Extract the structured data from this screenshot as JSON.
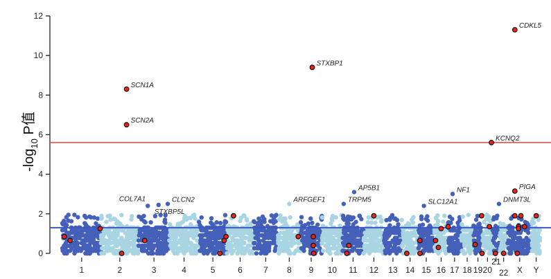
{
  "chart_data": {
    "type": "scatter",
    "title": "",
    "ylabel_main": "-log",
    "ylabel_sub": "10",
    "ylabel_tail": " P值",
    "xlabel": "",
    "ylim": [
      0,
      12
    ],
    "yticks": [
      "0",
      "2",
      "4",
      "6",
      "8",
      "10",
      "12"
    ],
    "thresholds": {
      "genome_wide": 5.6,
      "suggestive": 1.3
    },
    "colors": {
      "dark": "#4460b8",
      "light": "#a9d5e2",
      "highlight": "#e8231c",
      "genome_wide_line": "#e8433a",
      "suggestive_line": "#3b55c4"
    },
    "chromosomes": [
      {
        "label": "1",
        "size": 249
      },
      {
        "label": "2",
        "size": 243
      },
      {
        "label": "3",
        "size": 198
      },
      {
        "label": "4",
        "size": 191
      },
      {
        "label": "5",
        "size": 181
      },
      {
        "label": "6",
        "size": 171
      },
      {
        "label": "7",
        "size": 159
      },
      {
        "label": "8",
        "size": 145
      },
      {
        "label": "9",
        "size": 138
      },
      {
        "label": "10",
        "size": 134
      },
      {
        "label": "11",
        "size": 135
      },
      {
        "label": "12",
        "size": 133
      },
      {
        "label": "13",
        "size": 114
      },
      {
        "label": "14",
        "size": 107
      },
      {
        "label": "15",
        "size": 102
      },
      {
        "label": "16",
        "size": 90
      },
      {
        "label": "17",
        "size": 83
      },
      {
        "label": "18",
        "size": 80
      },
      {
        "label": "19",
        "size": 59
      },
      {
        "label": "20",
        "size": 64
      },
      {
        "label": "21",
        "size": 47
      },
      {
        "label": "22",
        "size": 51
      },
      {
        "label": "X",
        "size": 156
      },
      {
        "label": "Y",
        "size": 57
      }
    ],
    "labeled_genes": [
      {
        "gene": "SCN1A",
        "chrom": "2",
        "pos": 0.68,
        "value": 8.3,
        "highlight": true
      },
      {
        "gene": "SCN2A",
        "chrom": "2",
        "pos": 0.68,
        "value": 6.5,
        "highlight": true
      },
      {
        "gene": "STXBP1",
        "chrom": "9",
        "pos": 0.55,
        "value": 9.4,
        "highlight": true
      },
      {
        "gene": "CDKL5",
        "chrom": "X",
        "pos": 0.3,
        "value": 11.3,
        "highlight": true
      },
      {
        "gene": "KCNQ2",
        "chrom": "20",
        "pos": 0.9,
        "value": 5.6,
        "highlight": true
      },
      {
        "gene": "PIGA",
        "chrom": "X",
        "pos": 0.3,
        "value": 3.15,
        "highlight": true
      },
      {
        "gene": "DNMT3L",
        "chrom": "21",
        "pos": 0.9,
        "value": 2.5,
        "highlight": false
      },
      {
        "gene": "NF1",
        "chrom": "17",
        "pos": 0.35,
        "value": 3.0,
        "highlight": false
      },
      {
        "gene": "SLC12A1",
        "chrom": "15",
        "pos": 0.35,
        "value": 2.4,
        "highlight": false
      },
      {
        "gene": "AP5B1",
        "chrom": "11",
        "pos": 0.55,
        "value": 3.1,
        "highlight": false
      },
      {
        "gene": "TRPM5",
        "chrom": "11",
        "pos": 0.05,
        "value": 2.5,
        "highlight": false
      },
      {
        "gene": "ARFGEF1",
        "chrom": "8",
        "pos": 0.5,
        "value": 2.5,
        "highlight": false
      },
      {
        "gene": "COL7A1",
        "chrom": "3",
        "pos": 0.3,
        "value": 2.4,
        "highlight": false
      },
      {
        "gene": "STXBP5L",
        "chrom": "3",
        "pos": 0.65,
        "value": 2.45,
        "highlight": false
      },
      {
        "gene": "CLCN2",
        "chrom": "3",
        "pos": 0.95,
        "value": 2.5,
        "highlight": false
      }
    ],
    "other_highlighted": [
      {
        "chrom": "1",
        "pos": 0.05,
        "value": 0.85
      },
      {
        "chrom": "1",
        "pos": 0.2,
        "value": 0.65
      },
      {
        "chrom": "1",
        "pos": 0.98,
        "value": 1.25
      },
      {
        "chrom": "2",
        "pos": 0.55,
        "value": 0
      },
      {
        "chrom": "3",
        "pos": 0.2,
        "value": 0.65
      },
      {
        "chrom": "5",
        "pos": 0.75,
        "value": 0
      },
      {
        "chrom": "5",
        "pos": 0.9,
        "value": 0.65
      },
      {
        "chrom": "5",
        "pos": 0.97,
        "value": 0.85
      },
      {
        "chrom": "6",
        "pos": 0.25,
        "value": 1.9
      },
      {
        "chrom": "8",
        "pos": 0.9,
        "value": 0.85
      },
      {
        "chrom": "9",
        "pos": 0.6,
        "value": 0.85
      },
      {
        "chrom": "9",
        "pos": 0.6,
        "value": 0.4
      },
      {
        "chrom": "9",
        "pos": 0.62,
        "value": 0
      },
      {
        "chrom": "11",
        "pos": 0.3,
        "value": 0.4
      },
      {
        "chrom": "11",
        "pos": 0.2,
        "value": 0
      },
      {
        "chrom": "12",
        "pos": 0.5,
        "value": 1.9
      },
      {
        "chrom": "14",
        "pos": 0.3,
        "value": 0
      },
      {
        "chrom": "15",
        "pos": 0.1,
        "value": 0.65
      },
      {
        "chrom": "15",
        "pos": 0.1,
        "value": 0
      },
      {
        "chrom": "16",
        "pos": 0.1,
        "value": 0.65
      },
      {
        "chrom": "16",
        "pos": 0.3,
        "value": 0.3
      },
      {
        "chrom": "16",
        "pos": 0.5,
        "value": 1.25
      },
      {
        "chrom": "17",
        "pos": 0.0,
        "value": 1.35
      },
      {
        "chrom": "19",
        "pos": 0.2,
        "value": 0.45
      },
      {
        "chrom": "19",
        "pos": 0.9,
        "value": 1.9
      },
      {
        "chrom": "19",
        "pos": 0.95,
        "value": 0
      },
      {
        "chrom": "20",
        "pos": 0.7,
        "value": 1.35
      },
      {
        "chrom": "21",
        "pos": 0.4,
        "value": 0
      },
      {
        "chrom": "22",
        "pos": 0.5,
        "value": 0
      },
      {
        "chrom": "X",
        "pos": 0.3,
        "value": 1.9
      },
      {
        "chrom": "X",
        "pos": 0.45,
        "value": 1.35
      },
      {
        "chrom": "X",
        "pos": 0.45,
        "value": 1.25
      },
      {
        "chrom": "X",
        "pos": 0.55,
        "value": 1.9
      },
      {
        "chrom": "X",
        "pos": 0.7,
        "value": 1.35
      },
      {
        "chrom": "X",
        "pos": 0.4,
        "value": 0
      },
      {
        "chrom": "Y",
        "pos": 0.5,
        "value": 1.9
      }
    ]
  }
}
